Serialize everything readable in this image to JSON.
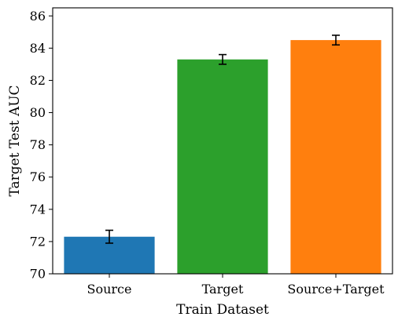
{
  "chart_data": {
    "type": "bar",
    "categories": [
      "Source",
      "Target",
      "Source+Target"
    ],
    "values": [
      72.3,
      83.3,
      84.5
    ],
    "errors": [
      0.4,
      0.3,
      0.3
    ],
    "colors": [
      "#1f77b4",
      "#2ca02c",
      "#ff7f0e"
    ],
    "xlabel": "Train Dataset",
    "ylabel": "Target Test AUC",
    "ylim": [
      70,
      86.5
    ],
    "yticks": [
      70,
      72,
      74,
      76,
      78,
      80,
      82,
      84,
      86
    ],
    "grid": false,
    "legend": "none"
  }
}
